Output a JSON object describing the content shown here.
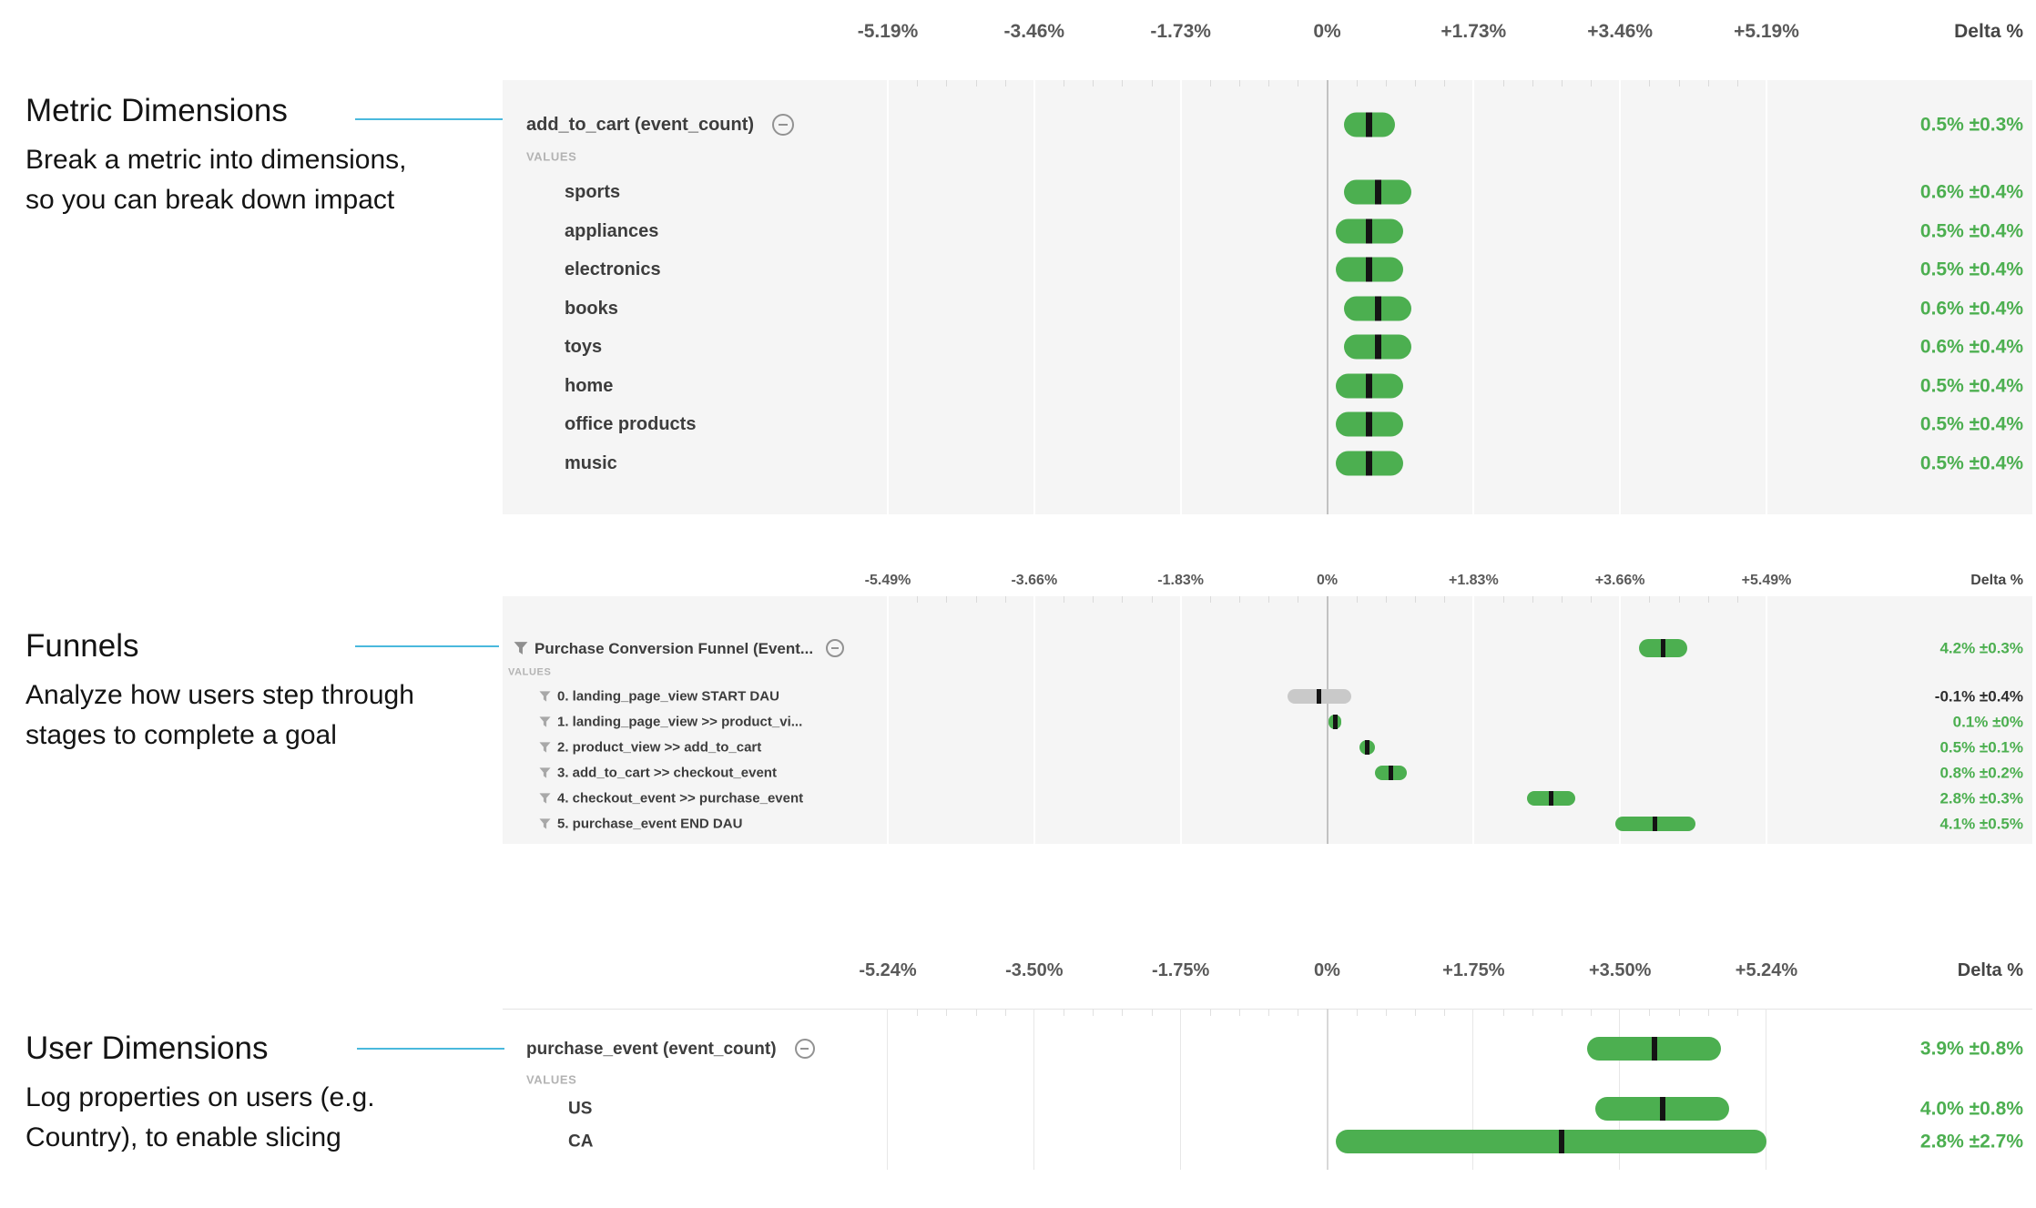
{
  "colors": {
    "positive": "#4caf50",
    "insignificant_bar": "#c9c9c9",
    "insignificant_text": "#2f2f2f",
    "estimate_tick": "#141414",
    "connector_line": "#4ab9dd",
    "panel_background": "#f5f5f5"
  },
  "annotations": [
    {
      "title": "Metric Dimensions",
      "lines": [
        "Break a metric into dimensions,",
        "so you can break down impact"
      ]
    },
    {
      "title": "Funnels",
      "lines": [
        "Analyze how users step through",
        "stages to complete a goal"
      ]
    },
    {
      "title": "User Dimensions",
      "lines": [
        "Log properties on users (e.g.",
        "Country), to enable slicing"
      ]
    }
  ],
  "panels": [
    {
      "axis": {
        "ticks": [
          "-5.19%",
          "-3.46%",
          "-1.73%",
          "0%",
          "+1.73%",
          "+3.46%",
          "+5.19%"
        ],
        "max_abs": 5.19,
        "delta_header": "Delta %"
      },
      "title_row": {
        "label": "add_to_cart (event_count)",
        "delta": "0.5% ±0.3%",
        "value": 0.5,
        "ci": 0.3,
        "style": "positive"
      },
      "values_caption": "VALUES",
      "rows": [
        {
          "label": "sports",
          "delta": "0.6% ±0.4%",
          "value": 0.6,
          "ci": 0.4,
          "style": "positive"
        },
        {
          "label": "appliances",
          "delta": "0.5% ±0.4%",
          "value": 0.5,
          "ci": 0.4,
          "style": "positive"
        },
        {
          "label": "electronics",
          "delta": "0.5% ±0.4%",
          "value": 0.5,
          "ci": 0.4,
          "style": "positive"
        },
        {
          "label": "books",
          "delta": "0.6% ±0.4%",
          "value": 0.6,
          "ci": 0.4,
          "style": "positive"
        },
        {
          "label": "toys",
          "delta": "0.6% ±0.4%",
          "value": 0.6,
          "ci": 0.4,
          "style": "positive"
        },
        {
          "label": "home",
          "delta": "0.5% ±0.4%",
          "value": 0.5,
          "ci": 0.4,
          "style": "positive"
        },
        {
          "label": "office products",
          "delta": "0.5% ±0.4%",
          "value": 0.5,
          "ci": 0.4,
          "style": "positive"
        },
        {
          "label": "music",
          "delta": "0.5% ±0.4%",
          "value": 0.5,
          "ci": 0.4,
          "style": "positive"
        }
      ]
    },
    {
      "axis": {
        "ticks": [
          "-5.49%",
          "-3.66%",
          "-1.83%",
          "0%",
          "+1.83%",
          "+3.66%",
          "+5.49%"
        ],
        "max_abs": 5.49,
        "delta_header": "Delta %"
      },
      "title_row": {
        "label": "Purchase Conversion Funnel (Event...",
        "delta": "4.2% ±0.3%",
        "value": 4.2,
        "ci": 0.3,
        "style": "positive"
      },
      "values_caption": "VALUES",
      "rows": [
        {
          "label": "0. landing_page_view START DAU",
          "delta": "-0.1% ±0.4%",
          "value": -0.1,
          "ci": 0.4,
          "style": "insignificant"
        },
        {
          "label": "1. landing_page_view >> product_vi...",
          "delta": "0.1% ±0%",
          "value": 0.1,
          "ci": 0,
          "style": "positive"
        },
        {
          "label": "2. product_view >> add_to_cart",
          "delta": "0.5% ±0.1%",
          "value": 0.5,
          "ci": 0.1,
          "style": "positive"
        },
        {
          "label": "3. add_to_cart >> checkout_event",
          "delta": "0.8% ±0.2%",
          "value": 0.8,
          "ci": 0.2,
          "style": "positive"
        },
        {
          "label": "4. checkout_event >> purchase_event",
          "delta": "2.8% ±0.3%",
          "value": 2.8,
          "ci": 0.3,
          "style": "positive"
        },
        {
          "label": "5. purchase_event END DAU",
          "delta": "4.1% ±0.5%",
          "value": 4.1,
          "ci": 0.5,
          "style": "positive"
        }
      ]
    },
    {
      "axis": {
        "ticks": [
          "-5.24%",
          "-3.50%",
          "-1.75%",
          "0%",
          "+1.75%",
          "+3.50%",
          "+5.24%"
        ],
        "max_abs": 5.24,
        "delta_header": "Delta %"
      },
      "title_row": {
        "label": "purchase_event (event_count)",
        "delta": "3.9% ±0.8%",
        "value": 3.9,
        "ci": 0.8,
        "style": "positive"
      },
      "values_caption": "VALUES",
      "rows": [
        {
          "label": "US",
          "delta": "4.0% ±0.8%",
          "value": 4.0,
          "ci": 0.8,
          "style": "positive"
        },
        {
          "label": "CA",
          "delta": "2.8% ±2.7%",
          "value": 2.8,
          "ci": 2.7,
          "style": "positive"
        }
      ]
    }
  ],
  "chart_data": [
    {
      "type": "scatter",
      "subtype": "forest-plot",
      "title": "add_to_cart (event_count) by dimension",
      "xlabel": "Delta %",
      "xlim": [
        -5.19,
        5.19
      ],
      "categories": [
        "add_to_cart (event_count)",
        "sports",
        "appliances",
        "electronics",
        "books",
        "toys",
        "home",
        "office products",
        "music"
      ],
      "values": [
        0.5,
        0.6,
        0.5,
        0.5,
        0.6,
        0.6,
        0.5,
        0.5,
        0.5
      ],
      "ci": [
        0.3,
        0.4,
        0.4,
        0.4,
        0.4,
        0.4,
        0.4,
        0.4,
        0.4
      ]
    },
    {
      "type": "scatter",
      "subtype": "forest-plot",
      "title": "Purchase Conversion Funnel (Event...)",
      "xlabel": "Delta %",
      "xlim": [
        -5.49,
        5.49
      ],
      "categories": [
        "Purchase Conversion Funnel (Event...",
        "0. landing_page_view START DAU",
        "1. landing_page_view >> product_vi...",
        "2. product_view >> add_to_cart",
        "3. add_to_cart >> checkout_event",
        "4. checkout_event >> purchase_event",
        "5. purchase_event END DAU"
      ],
      "values": [
        4.2,
        -0.1,
        0.1,
        0.5,
        0.8,
        2.8,
        4.1
      ],
      "ci": [
        0.3,
        0.4,
        0,
        0.1,
        0.2,
        0.3,
        0.5
      ]
    },
    {
      "type": "scatter",
      "subtype": "forest-plot",
      "title": "purchase_event (event_count) by user dimension",
      "xlabel": "Delta %",
      "xlim": [
        -5.24,
        5.24
      ],
      "categories": [
        "purchase_event (event_count)",
        "US",
        "CA"
      ],
      "values": [
        3.9,
        4.0,
        2.8
      ],
      "ci": [
        0.8,
        0.8,
        2.7
      ]
    }
  ]
}
